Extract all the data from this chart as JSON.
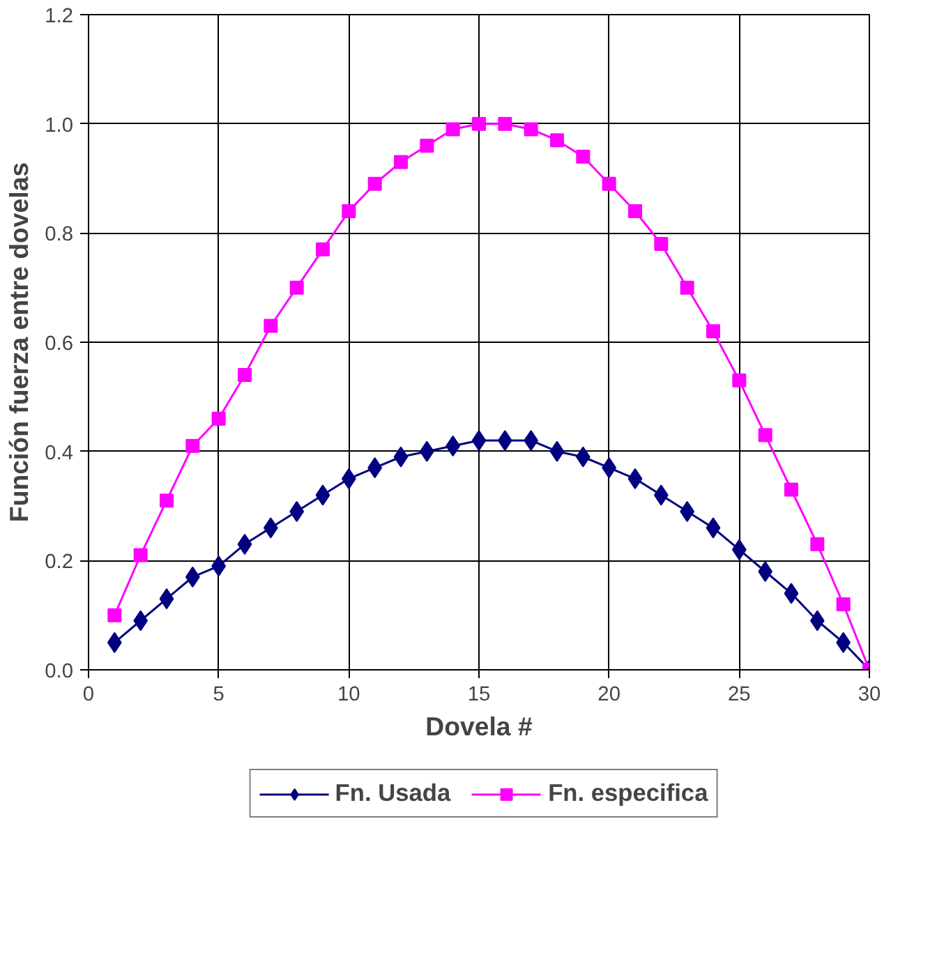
{
  "chart_data": {
    "type": "line",
    "xlabel": "Dovela #",
    "ylabel": "Función fuerza entre dovelas",
    "x": [
      1,
      2,
      3,
      4,
      5,
      6,
      7,
      8,
      9,
      10,
      11,
      12,
      13,
      14,
      15,
      16,
      17,
      18,
      19,
      20,
      21,
      22,
      23,
      24,
      25,
      26,
      27,
      28,
      29,
      30
    ],
    "series": [
      {
        "name": "Fn. Usada",
        "color": "#000080",
        "marker": "diamond",
        "values": [
          0.05,
          0.09,
          0.13,
          0.17,
          0.19,
          0.23,
          0.26,
          0.29,
          0.32,
          0.35,
          0.37,
          0.39,
          0.4,
          0.41,
          0.42,
          0.42,
          0.42,
          0.4,
          0.39,
          0.37,
          0.35,
          0.32,
          0.29,
          0.26,
          0.22,
          0.18,
          0.14,
          0.09,
          0.05,
          0.0
        ]
      },
      {
        "name": "Fn. especifica",
        "color": "#ff00ff",
        "marker": "square",
        "values": [
          0.1,
          0.21,
          0.31,
          0.41,
          0.46,
          0.54,
          0.63,
          0.7,
          0.77,
          0.84,
          0.89,
          0.93,
          0.96,
          0.99,
          1.0,
          1.0,
          0.99,
          0.97,
          0.94,
          0.89,
          0.84,
          0.78,
          0.7,
          0.62,
          0.53,
          0.43,
          0.33,
          0.23,
          0.12,
          0.0
        ]
      }
    ],
    "xlim": [
      0,
      30
    ],
    "xticks": [
      0,
      5,
      10,
      15,
      20,
      25,
      30
    ],
    "ylim": [
      0,
      1.2
    ],
    "yticks": [
      {
        "value": 0,
        "label": "0.0"
      },
      {
        "value": 0.2,
        "label": "0.2"
      },
      {
        "value": 0.4,
        "label": "0.4"
      },
      {
        "value": 0.6,
        "label": "0.6"
      },
      {
        "value": 0.8,
        "label": "0.8"
      },
      {
        "value": 1.0,
        "label": "1.0"
      },
      {
        "value": 1.2,
        "label": "1.2"
      }
    ],
    "grid": true,
    "legend": "bottom",
    "line_style": "solid"
  }
}
